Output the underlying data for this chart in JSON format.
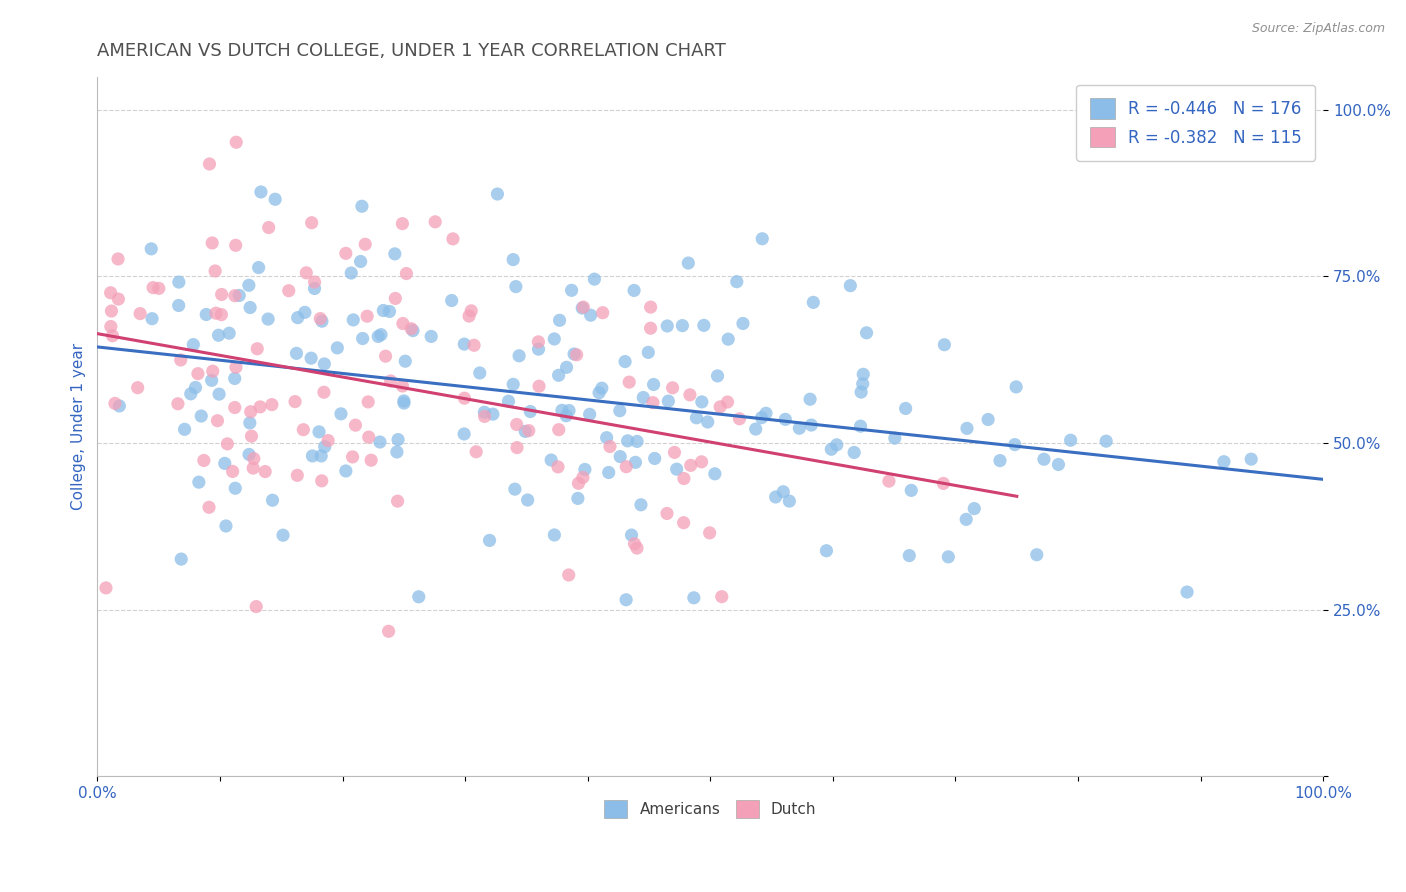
{
  "title": "AMERICAN VS DUTCH COLLEGE, UNDER 1 YEAR CORRELATION CHART",
  "source": "Source: ZipAtlas.com",
  "ylabel": "College, Under 1 year",
  "xlim": [
    0.0,
    1.0
  ],
  "ylim": [
    0.0,
    1.05
  ],
  "x_ticks": [
    0.0,
    0.1,
    0.2,
    0.3,
    0.4,
    0.5,
    0.6,
    0.7,
    0.8,
    0.9,
    1.0
  ],
  "x_tick_labels": [
    "0.0%",
    "",
    "",
    "",
    "",
    "",
    "",
    "",
    "",
    "",
    "100.0%"
  ],
  "y_ticks": [
    0.0,
    0.25,
    0.5,
    0.75,
    1.0
  ],
  "y_tick_labels": [
    "",
    "25.0%",
    "50.0%",
    "75.0%",
    "100.0%"
  ],
  "blue_color": "#8BBDE8",
  "pink_color": "#F4A0B8",
  "blue_line_color": "#3A6EC0",
  "pink_line_color": "#D04070",
  "R_blue": -0.446,
  "N_blue": 176,
  "R_pink": -0.382,
  "N_pink": 115,
  "legend_color": "#3465C0",
  "background_color": "#FFFFFF",
  "grid_color": "#CCCCCC",
  "title_color": "#505050",
  "source_color": "#909090",
  "axis_label_color": "#3465C0"
}
